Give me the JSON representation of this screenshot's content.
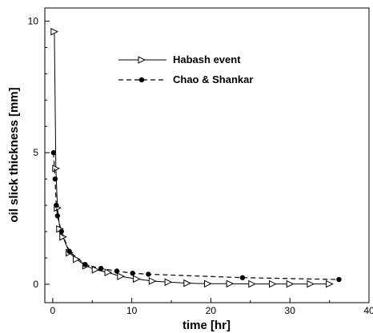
{
  "chart_data": {
    "type": "line",
    "title": "",
    "xlabel": "time [hr]",
    "ylabel": "oil slick thickness [mm]",
    "xlim": [
      -1,
      40
    ],
    "ylim": [
      -0.7,
      10.5
    ],
    "xticks": [
      "0",
      "10",
      "20",
      "30",
      "40"
    ],
    "yticks": [
      "0",
      "5",
      "10"
    ],
    "grid": false,
    "legend_position": "top-center",
    "series": [
      {
        "name": "Habash event",
        "line_style": "solid",
        "marker": "open-triangle-right",
        "color": "#000000",
        "x": [
          0.2,
          0.4,
          0.6,
          0.9,
          1.3,
          2.1,
          3.0,
          4.2,
          5.4,
          7.0,
          8.6,
          10.6,
          12.6,
          14.6,
          17.0,
          19.6,
          22.4,
          25.2,
          27.8,
          30.0,
          32.6,
          35.0
        ],
        "y": [
          9.6,
          4.4,
          2.9,
          2.1,
          1.8,
          1.2,
          0.95,
          0.7,
          0.55,
          0.45,
          0.3,
          0.2,
          0.12,
          0.08,
          0.04,
          0.02,
          0.02,
          0.01,
          0.01,
          0.01,
          0.01,
          0.01
        ]
      },
      {
        "name": "Chao & Shankar",
        "line_style": "dashed",
        "marker": "filled-circle",
        "color": "#000000",
        "x": [
          0.1,
          0.3,
          0.45,
          0.6,
          1.1,
          2.1,
          4.1,
          6.1,
          8.1,
          10.1,
          12.1,
          24.0,
          36.2
        ],
        "y": [
          5.0,
          4.0,
          3.0,
          2.6,
          2.0,
          1.25,
          0.75,
          0.6,
          0.5,
          0.42,
          0.38,
          0.25,
          0.18
        ]
      }
    ]
  }
}
